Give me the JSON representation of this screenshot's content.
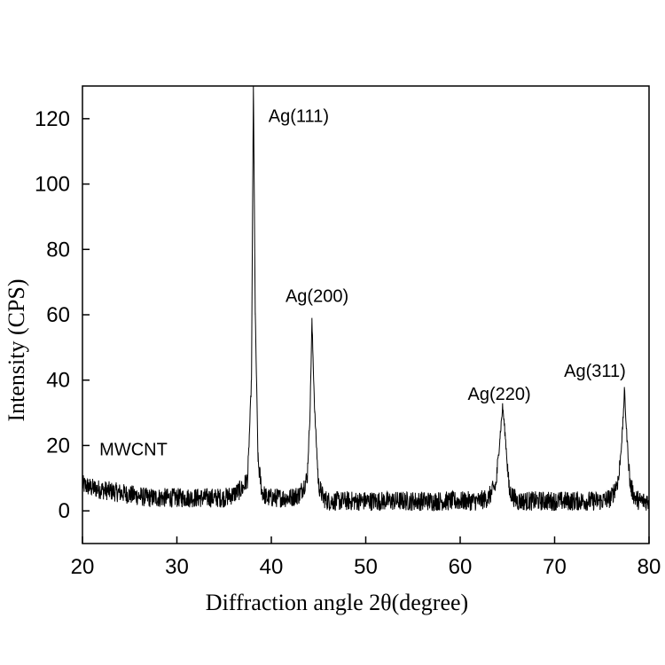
{
  "chart_data": {
    "type": "line",
    "title": "",
    "xlabel": "Diffraction angle 2θ(degree)",
    "ylabel": "Intensity (CPS)",
    "xlim": [
      20,
      80
    ],
    "ylim": [
      -10,
      130
    ],
    "xticks": [
      20,
      30,
      40,
      50,
      60,
      70,
      80
    ],
    "yticks": [
      0,
      20,
      40,
      60,
      80,
      100,
      120
    ],
    "grid": false,
    "legend": "none",
    "line_color": "#000000",
    "series": [
      {
        "x": [
          20,
          21,
          22,
          23,
          24,
          25,
          26,
          27,
          28,
          29,
          30,
          31,
          32,
          33,
          34,
          35,
          36,
          37,
          37.5,
          37.9,
          38.1,
          38.3,
          38.6,
          39,
          39.5,
          40,
          41,
          42,
          43,
          43.8,
          44.1,
          44.3,
          44.6,
          45,
          45.5,
          46,
          48,
          50,
          52,
          54,
          56,
          58,
          60,
          62,
          63,
          63.8,
          64.2,
          64.5,
          64.8,
          65.2,
          66,
          68,
          70,
          72,
          74,
          75,
          76,
          76.8,
          77.2,
          77.4,
          77.6,
          78,
          78.5,
          79,
          80
        ],
        "y": [
          8,
          7,
          6.5,
          6,
          5.5,
          5,
          4.5,
          4,
          4,
          4,
          4,
          4,
          4,
          4,
          4,
          4,
          5,
          7,
          10,
          40,
          130,
          60,
          15,
          6,
          4,
          4,
          4,
          4,
          5,
          10,
          30,
          58,
          30,
          8,
          4,
          3,
          3,
          3,
          3,
          3,
          3,
          3,
          3,
          3,
          4,
          8,
          22,
          32,
          22,
          6,
          3,
          3,
          3,
          3,
          3,
          3,
          4,
          10,
          25,
          37,
          25,
          8,
          4,
          3,
          3
        ]
      }
    ],
    "annotations": [
      {
        "text": "MWCNT",
        "x": 21.8,
        "y": 17
      },
      {
        "text": "Ag(111)",
        "x": 39.7,
        "y": 119
      },
      {
        "text": "Ag(200)",
        "x": 41.5,
        "y": 64
      },
      {
        "text": "Ag(220)",
        "x": 60.8,
        "y": 34
      },
      {
        "text": "Ag(311)",
        "x": 71.0,
        "y": 41
      }
    ]
  }
}
